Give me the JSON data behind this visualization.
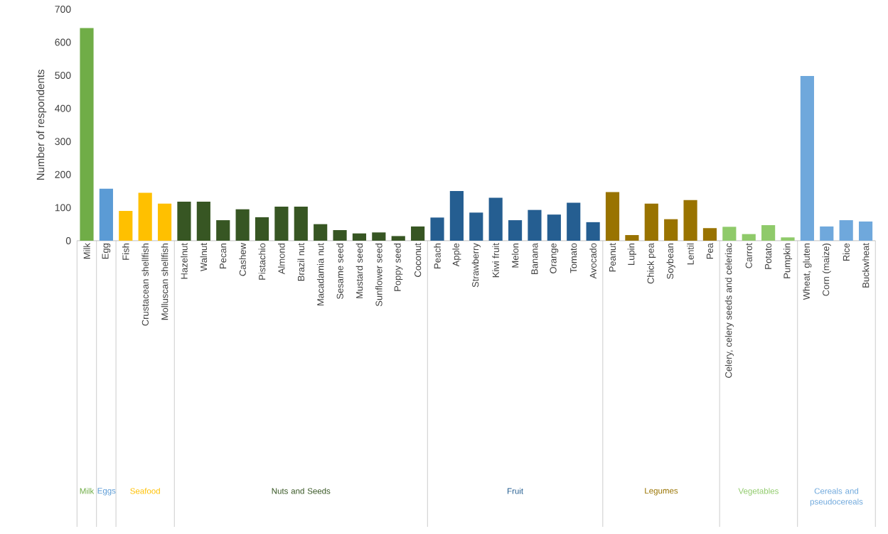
{
  "chart_data": {
    "type": "bar",
    "ylabel": "Number of respondents",
    "categories": [
      "Milk",
      "Egg",
      "Fish",
      "Crustacean shellfish",
      "Molluscan shellfish",
      "Hazelnut",
      "Walnut",
      "Pecan",
      "Cashew",
      "Pistachio",
      "Almond",
      "Brazil nut",
      "Macadamia nut",
      "Sesame seed",
      "Mustard seed",
      "Sunflower seed",
      "Poppy seed",
      "Coconut",
      "Peach",
      "Apple",
      "Strawberry",
      "Kiwi fruit",
      "Melon",
      "Banana",
      "Orange",
      "Tomato",
      "Avocado",
      "Peanut",
      "Lupin",
      "Chick pea",
      "Soybean",
      "Lentil",
      "Pea",
      "Celery, celery seeds and celeriac",
      "Carrot",
      "Potato",
      "Pumpkin",
      "Wheat, gluten",
      "Corn (maize)",
      "Rice",
      "Buckwheat"
    ],
    "series": [
      {
        "name": "Milk",
        "color": "#70ad47",
        "values": [
          643,
          null,
          null,
          null,
          null,
          null,
          null,
          null,
          null,
          null,
          null,
          null,
          null,
          null,
          null,
          null,
          null,
          null,
          null,
          null,
          null,
          null,
          null,
          null,
          null,
          null,
          null,
          null,
          null,
          null,
          null,
          null,
          null,
          null,
          null,
          null,
          null,
          null,
          null,
          null,
          null
        ]
      },
      {
        "name": "Eggs",
        "color": "#5b9bd5",
        "values": [
          null,
          157,
          null,
          null,
          null,
          null,
          null,
          null,
          null,
          null,
          null,
          null,
          null,
          null,
          null,
          null,
          null,
          null,
          null,
          null,
          null,
          null,
          null,
          null,
          null,
          null,
          null,
          null,
          null,
          null,
          null,
          null,
          null,
          null,
          null,
          null,
          null,
          null,
          null,
          null,
          null
        ]
      },
      {
        "name": "Seafood",
        "color": "#ffc000",
        "values": [
          null,
          null,
          90,
          145,
          112,
          null,
          null,
          null,
          null,
          null,
          null,
          null,
          null,
          null,
          null,
          null,
          null,
          null,
          null,
          null,
          null,
          null,
          null,
          null,
          null,
          null,
          null,
          null,
          null,
          null,
          null,
          null,
          null,
          null,
          null,
          null,
          null,
          null,
          null,
          null,
          null
        ]
      },
      {
        "name": "Nuts and Seeds",
        "color": "#375623",
        "values": [
          null,
          null,
          null,
          null,
          null,
          118,
          118,
          62,
          95,
          71,
          103,
          103,
          50,
          32,
          22,
          25,
          14,
          43,
          null,
          null,
          null,
          null,
          null,
          null,
          null,
          null,
          null,
          null,
          null,
          null,
          null,
          null,
          null,
          null,
          null,
          null,
          null,
          null,
          null,
          null,
          null
        ]
      },
      {
        "name": "Fruit",
        "color": "#255e91",
        "values": [
          null,
          null,
          null,
          null,
          null,
          null,
          null,
          null,
          null,
          null,
          null,
          null,
          null,
          null,
          null,
          null,
          null,
          null,
          70,
          150,
          85,
          130,
          62,
          93,
          79,
          115,
          56,
          null,
          null,
          null,
          null,
          null,
          null,
          null,
          null,
          null,
          null,
          null,
          null,
          null,
          null
        ]
      },
      {
        "name": "Legumes",
        "color": "#997300",
        "values": [
          null,
          null,
          null,
          null,
          null,
          null,
          null,
          null,
          null,
          null,
          null,
          null,
          null,
          null,
          null,
          null,
          null,
          null,
          null,
          null,
          null,
          null,
          null,
          null,
          null,
          null,
          null,
          147,
          17,
          112,
          65,
          123,
          38,
          null,
          null,
          null,
          null,
          null,
          null,
          null,
          null
        ]
      },
      {
        "name": "Vegetables",
        "color": "#8fca6a",
        "values": [
          null,
          null,
          null,
          null,
          null,
          null,
          null,
          null,
          null,
          null,
          null,
          null,
          null,
          null,
          null,
          null,
          null,
          null,
          null,
          null,
          null,
          null,
          null,
          null,
          null,
          null,
          null,
          null,
          null,
          null,
          null,
          null,
          null,
          42,
          20,
          47,
          10,
          null,
          null,
          null,
          null
        ]
      },
      {
        "name": "Cereals and pseudocereals",
        "color": "#6fa8dc",
        "values": [
          null,
          null,
          null,
          null,
          null,
          null,
          null,
          null,
          null,
          null,
          null,
          null,
          null,
          null,
          null,
          null,
          null,
          null,
          null,
          null,
          null,
          null,
          null,
          null,
          null,
          null,
          null,
          null,
          null,
          null,
          null,
          null,
          null,
          null,
          null,
          null,
          null,
          498,
          43,
          62,
          58
        ]
      }
    ],
    "ylim": [
      0,
      700
    ],
    "yticks": [
      0,
      100,
      200,
      300,
      400,
      500,
      600,
      700
    ]
  }
}
